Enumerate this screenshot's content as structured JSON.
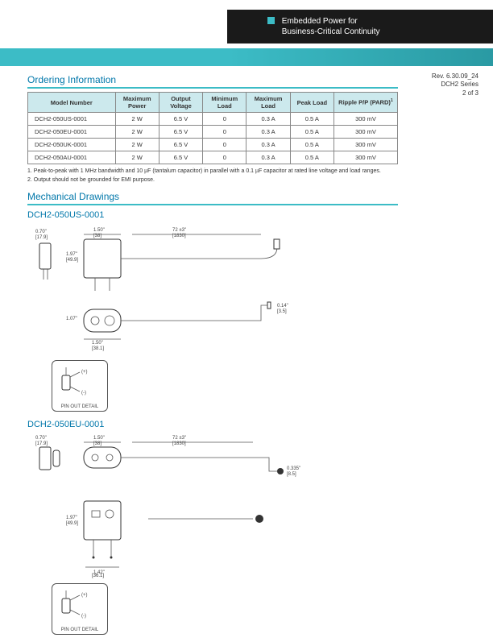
{
  "header": {
    "line1": "Embedded Power for",
    "line2": "Business-Critical Continuity"
  },
  "revision": {
    "rev": "Rev. 6.30.09_24",
    "series": "DCH2 Series",
    "page": "2 of 3"
  },
  "ordering": {
    "title": "Ordering Information",
    "columns": [
      "Model Number",
      "Maximum Power",
      "Output Voltage",
      "Minimum Load",
      "Maximum Load",
      "Peak Load",
      "Ripple P/P (PARD)"
    ],
    "col_widths": [
      "22%",
      "11%",
      "11%",
      "11%",
      "11%",
      "11%",
      "16%"
    ],
    "header_bg": "#cce9ed",
    "border_color": "#888888",
    "rows": [
      [
        "DCH2-050US-0001",
        "2 W",
        "6.5 V",
        "0",
        "0.3 A",
        "0.5 A",
        "300 mV"
      ],
      [
        "DCH2-050EU-0001",
        "2 W",
        "6.5 V",
        "0",
        "0.3 A",
        "0.5 A",
        "300 mV"
      ],
      [
        "DCH2-050UK-0001",
        "2 W",
        "6.5 V",
        "0",
        "0.3 A",
        "0.5 A",
        "300 mV"
      ],
      [
        "DCH2-050AU-0001",
        "2 W",
        "6.5 V",
        "0",
        "0.3 A",
        "0.5 A",
        "300 mV"
      ]
    ],
    "footnotes": [
      "1. Peak-to-peak with 1 MHz bandwidth and 10 µF (tantalum capacitor) in parallel with a 0.1 µF capacitor at rated line voltage and load ranges.",
      "2. Output should not be grounded for EMI purpose."
    ]
  },
  "mechanical": {
    "title": "Mechanical Drawings",
    "models": [
      {
        "name": "DCH2-050US-0001",
        "dims": {
          "side_h": "0.70\"",
          "side_h_mm": "[17.9]",
          "body_w": "1.50\"",
          "body_w_mm": "[38]",
          "cable": "72 ±3\"",
          "cable_mm": "[1830]",
          "body_h": "1.97\"",
          "body_h_mm": "[49.9]",
          "depth": "1.07\"",
          "plug_w": "1.50\"",
          "plug_w_mm": "[38.1]",
          "jack_d": "0.14\"",
          "jack_d_mm": "[3.5]"
        },
        "pinout": {
          "tip": "(+)",
          "sleeve": "(-)",
          "label": "PIN OUT DETAIL"
        }
      },
      {
        "name": "DCH2-050EU-0001",
        "dims": {
          "side_h": "0.70\"",
          "side_h_mm": "[17.9]",
          "body_w": "1.50\"",
          "body_w_mm": "[38]",
          "cable": "72 ±3\"",
          "cable_mm": "[1830]",
          "body_h": "1.97\"",
          "body_h_mm": "[49.9]",
          "plug_w": "1.42\"",
          "plug_w_mm": "[36.1]",
          "jack_h": "0.335\"",
          "jack_h_mm": "[8.5]"
        },
        "pinout": {
          "tip": "(+)",
          "sleeve": "(-)",
          "label": "PIN OUT DETAIL"
        }
      }
    ]
  },
  "colors": {
    "accent": "#3cbcc6",
    "heading": "#0077aa",
    "header_bg": "#1a1a1a"
  }
}
